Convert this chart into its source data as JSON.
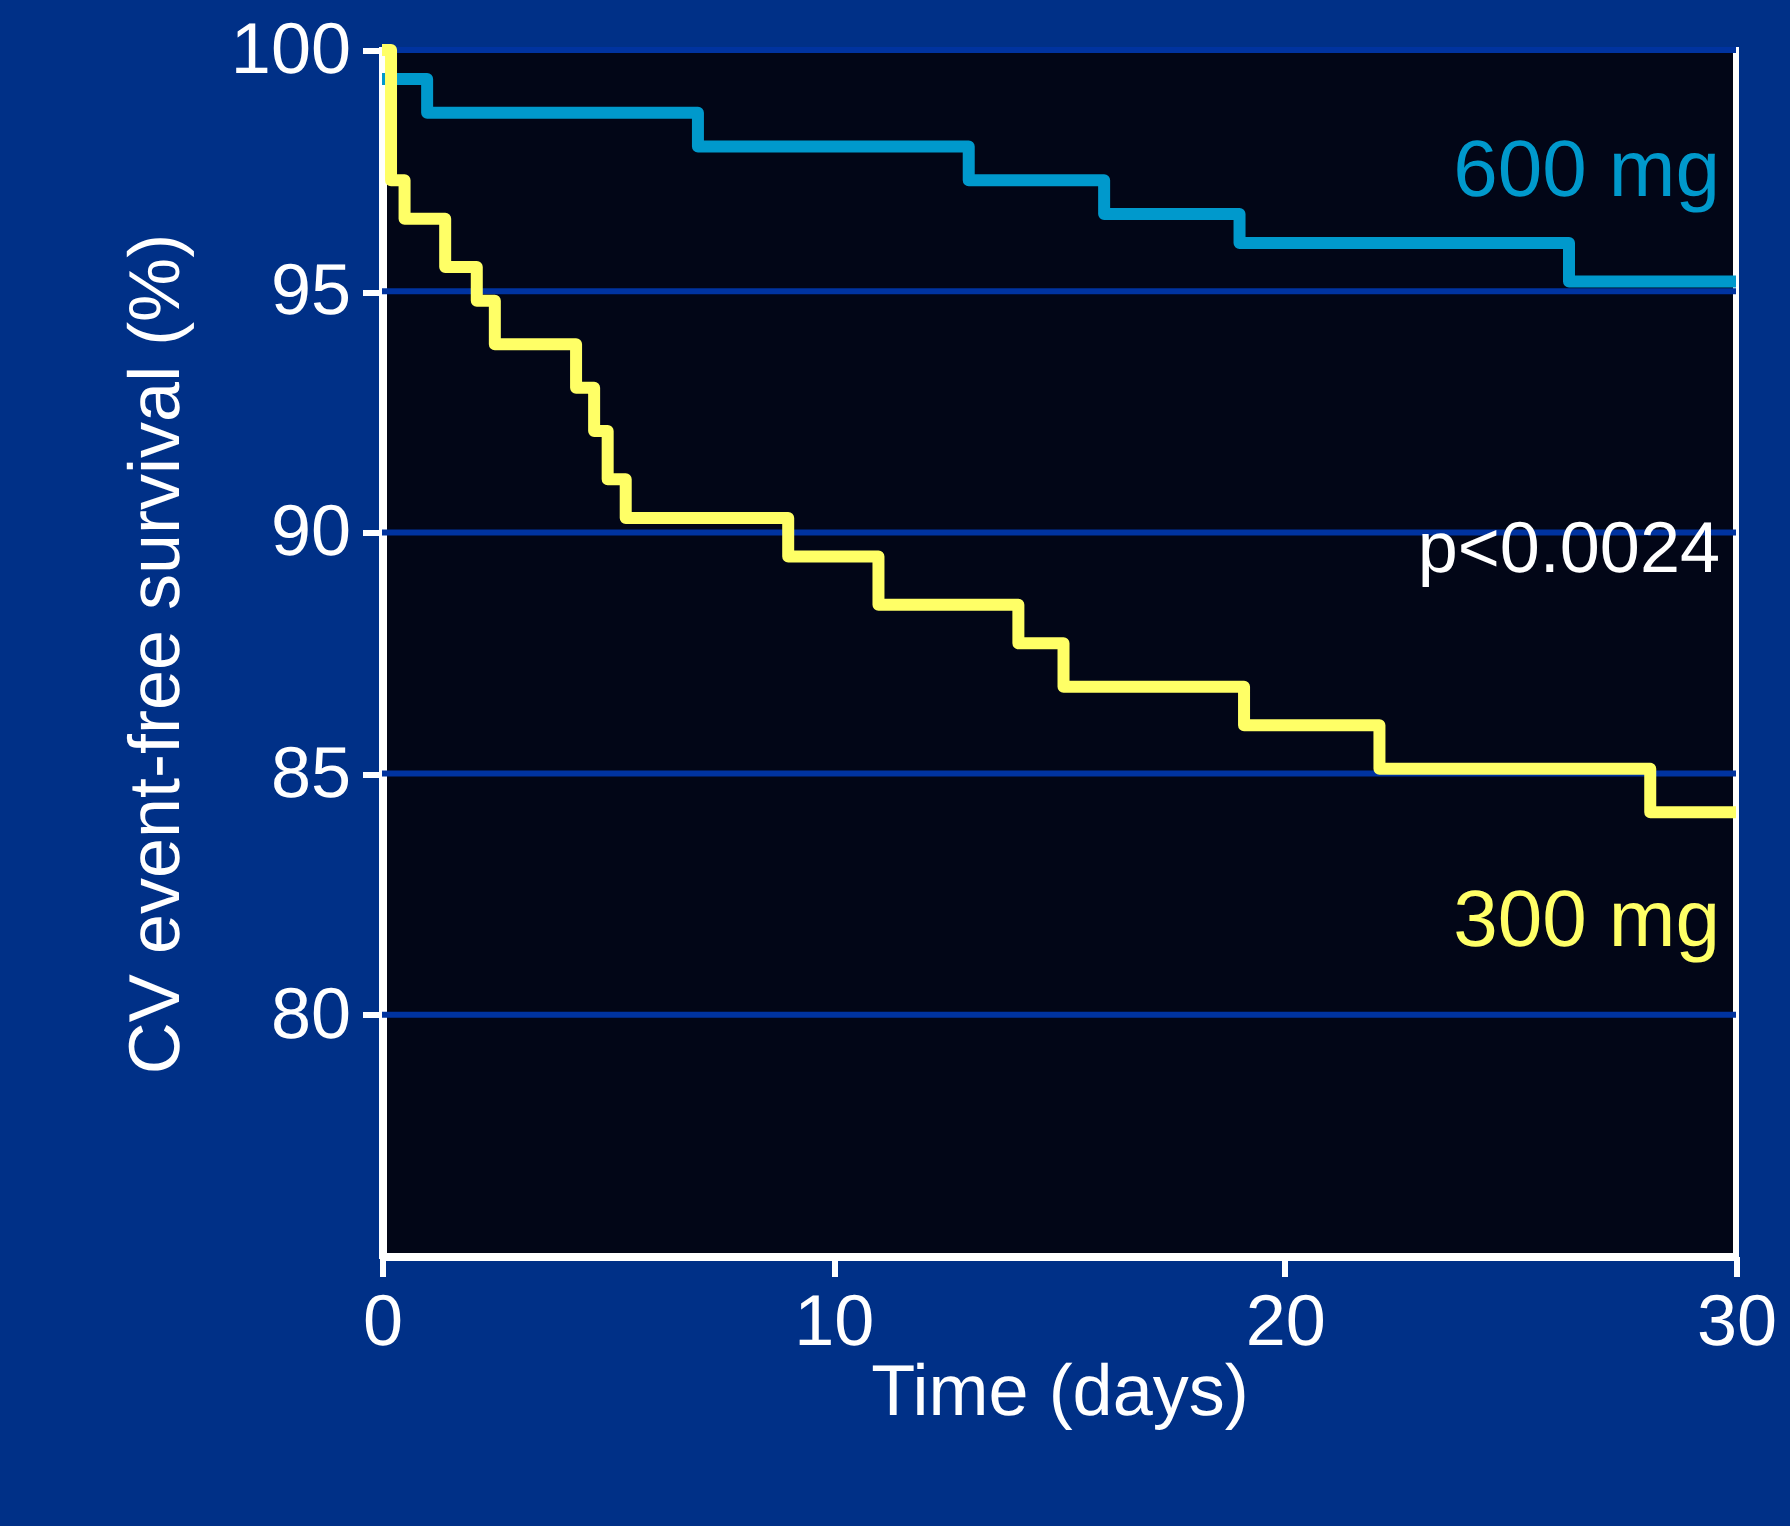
{
  "chart_data": {
    "type": "step",
    "xlabel": "Time (days)",
    "ylabel": "CV event-free survival (%)",
    "xlim": [
      0,
      30
    ],
    "xticks": [
      0,
      10,
      20,
      30
    ],
    "ylim": [
      75,
      100
    ],
    "yticks": [
      80,
      85,
      90,
      95,
      100
    ],
    "grid": "y",
    "line_style": "solid",
    "marker": "none",
    "series": [
      {
        "name": "600 mg",
        "color": "#0099cc",
        "x": [
          0,
          1,
          7,
          13,
          16,
          19,
          26.3,
          30
        ],
        "values": [
          99.4,
          98.7,
          98.0,
          97.3,
          96.6,
          96.0,
          95.2,
          95.2
        ]
      },
      {
        "name": "300 mg",
        "color": "#ffff66",
        "x": [
          0,
          0.2,
          0.5,
          1.4,
          2.1,
          2.5,
          4.3,
          4.7,
          5.0,
          5.4,
          9,
          11,
          14.1,
          15.1,
          19.1,
          22.1,
          28.1,
          30
        ],
        "values": [
          100,
          97.3,
          96.5,
          95.5,
          94.8,
          93.9,
          93.0,
          92.1,
          91.1,
          90.3,
          89.5,
          88.5,
          87.7,
          86.8,
          86.0,
          85.1,
          84.2,
          84.2
        ]
      }
    ],
    "annotations": [
      "p<0.0024"
    ]
  }
}
